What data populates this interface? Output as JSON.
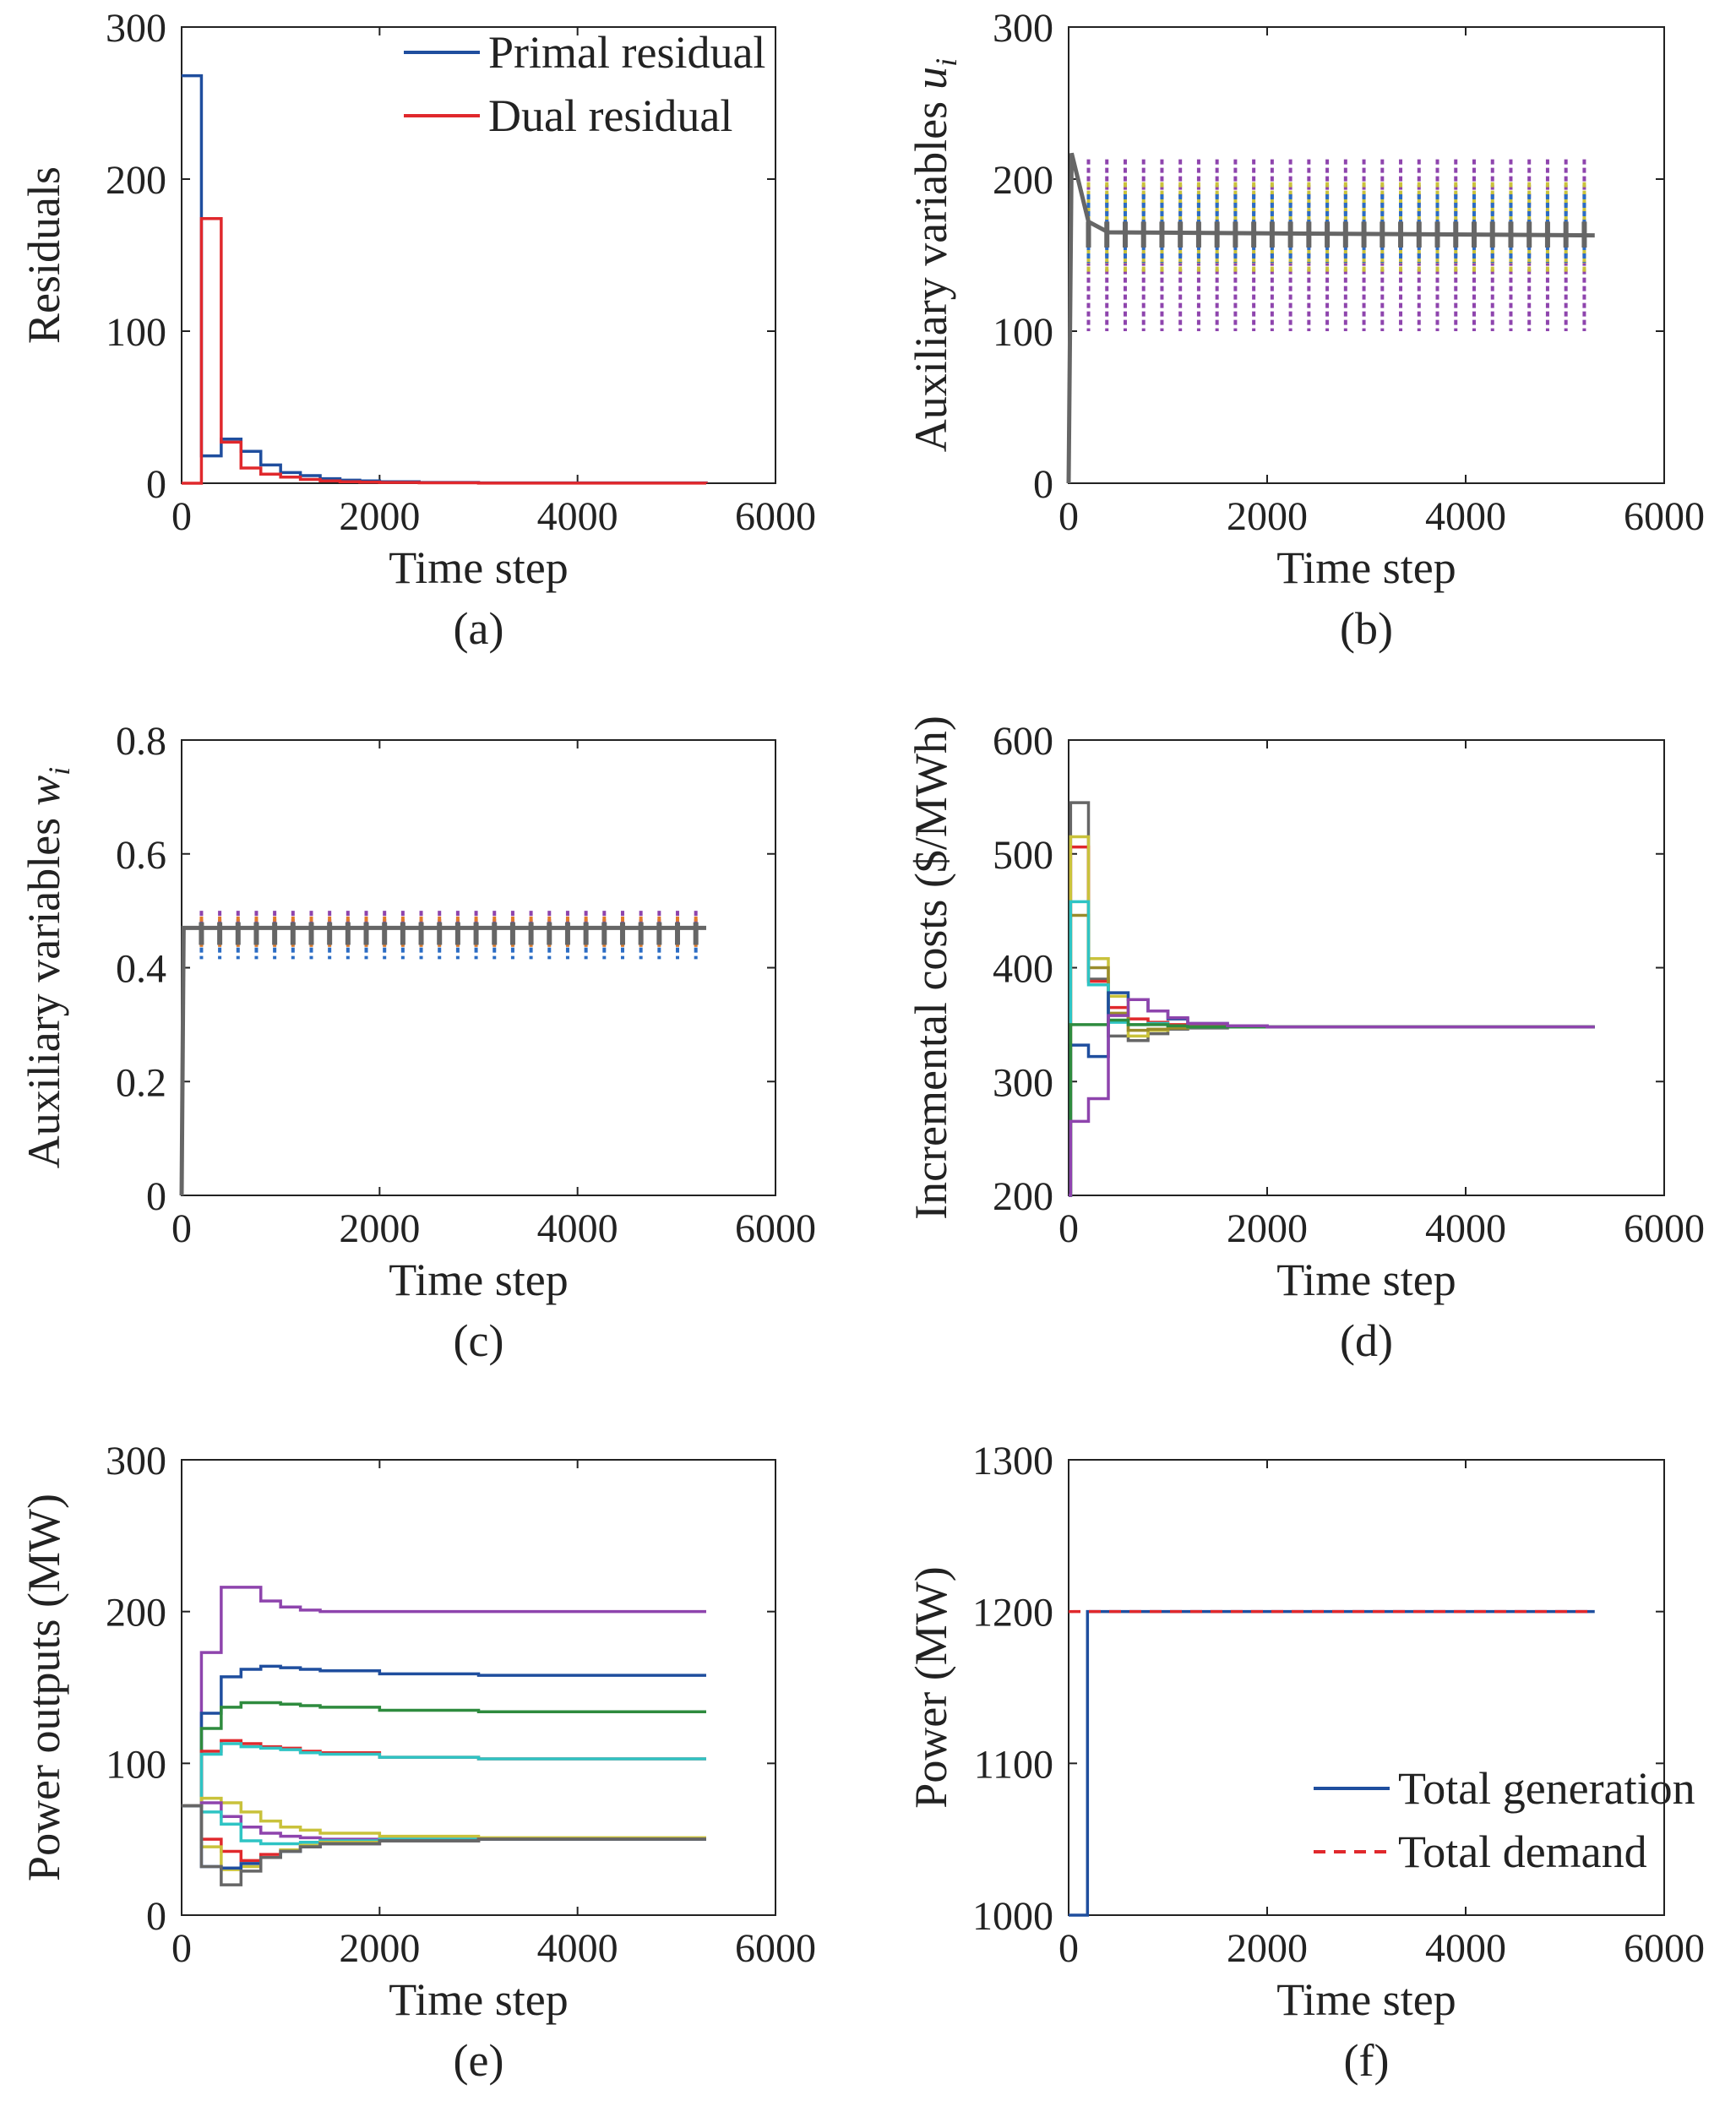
{
  "chart_data": [
    {
      "id": "a",
      "type": "line",
      "caption": "(a)",
      "xlabel": "Time step",
      "ylabel": "Residuals",
      "xlim": [
        0,
        6000
      ],
      "ylim": [
        0,
        300
      ],
      "xticks": [
        "0",
        "2000",
        "4000",
        "6000"
      ],
      "yticks": [
        "0",
        "100",
        "200",
        "300"
      ],
      "legend": "top-right",
      "series": [
        {
          "name": "Primal residual",
          "color": "#1f4e9e",
          "step": true,
          "x": [
            0,
            200,
            400,
            600,
            800,
            1000,
            1200,
            1400,
            1600,
            1800,
            2000,
            2400,
            3000,
            5300
          ],
          "y": [
            268,
            18,
            29,
            21,
            12,
            7,
            5,
            3,
            2,
            1.5,
            1,
            0.5,
            0.2,
            0.1
          ]
        },
        {
          "name": "Dual residual",
          "color": "#e0282c",
          "step": true,
          "x": [
            0,
            200,
            400,
            600,
            800,
            1000,
            1200,
            1400,
            1600,
            1800,
            2000,
            2400,
            3000,
            5300
          ],
          "y": [
            0,
            174,
            27,
            10,
            6,
            4,
            2.5,
            1.5,
            1,
            0.7,
            0.5,
            0.3,
            0.1,
            0.05
          ]
        }
      ]
    },
    {
      "id": "b",
      "type": "line",
      "caption": "(b)",
      "xlabel": "Time step",
      "ylabel": "Auxiliary variables",
      "ylabel_var": "u",
      "ylabel_sub": "i",
      "xlim": [
        0,
        6000
      ],
      "ylim": [
        0,
        300
      ],
      "xticks": [
        "0",
        "2000",
        "4000",
        "6000"
      ],
      "yticks": [
        "0",
        "100",
        "200",
        "300"
      ],
      "base": {
        "x": [
          0,
          30,
          200,
          400,
          5300
        ],
        "y": [
          0,
          217,
          172,
          165,
          163
        ],
        "color": "#666666"
      },
      "spikes": {
        "start": 200,
        "end": 5200,
        "period": 185,
        "center": 163,
        "series": [
          {
            "color": "#8e44ad",
            "lo": 100,
            "hi": 213
          },
          {
            "color": "#c9c23b",
            "lo": 138,
            "hi": 198
          },
          {
            "color": "#2b6cc4",
            "lo": 145,
            "hi": 190
          },
          {
            "color": "#666666",
            "lo": 155,
            "hi": 172
          }
        ]
      }
    },
    {
      "id": "c",
      "type": "line",
      "caption": "(c)",
      "xlabel": "Time step",
      "ylabel": "Auxiliary variables",
      "ylabel_var": "w",
      "ylabel_sub": "i",
      "xlim": [
        0,
        6000
      ],
      "ylim": [
        0,
        0.8
      ],
      "xticks": [
        "0",
        "2000",
        "4000",
        "6000"
      ],
      "yticks": [
        "0",
        "0.2",
        "0.4",
        "0.6",
        "0.8"
      ],
      "base": {
        "x": [
          0,
          20,
          5300
        ],
        "y": [
          0,
          0.47,
          0.47
        ],
        "color": "#666666"
      },
      "spikes": {
        "start": 200,
        "end": 5200,
        "period": 185,
        "center": 0.47,
        "series": [
          {
            "color": "#8e44ad",
            "lo": 0.45,
            "hi": 0.5
          },
          {
            "color": "#e07b2a",
            "lo": 0.43,
            "hi": 0.49
          },
          {
            "color": "#2b6cc4",
            "lo": 0.415,
            "hi": 0.48
          },
          {
            "color": "#666666",
            "lo": 0.44,
            "hi": 0.48
          }
        ]
      }
    },
    {
      "id": "d",
      "type": "line",
      "caption": "(d)",
      "xlabel": "Time step",
      "ylabel": "Incremental costs ($/MWh)",
      "xlim": [
        0,
        6000
      ],
      "ylim": [
        200,
        600
      ],
      "xticks": [
        "0",
        "2000",
        "4000",
        "6000"
      ],
      "yticks": [
        "200",
        "300",
        "400",
        "500",
        "600"
      ],
      "series": [
        {
          "color": "#666666",
          "step": true,
          "x": [
            0,
            20,
            200,
            400,
            600,
            800,
            1000,
            1200,
            1600,
            2000,
            5300
          ],
          "y": [
            200,
            545,
            390,
            340,
            336,
            342,
            346,
            347,
            348,
            348,
            348
          ]
        },
        {
          "color": "#e0282c",
          "step": true,
          "x": [
            0,
            20,
            200,
            400,
            600,
            800,
            1000,
            1200,
            1600,
            2000,
            5300
          ],
          "y": [
            200,
            506,
            388,
            365,
            355,
            352,
            350,
            349,
            348,
            348,
            348
          ]
        },
        {
          "color": "#c9c23b",
          "step": true,
          "x": [
            0,
            20,
            200,
            400,
            600,
            800,
            1000,
            1200,
            1600,
            2000,
            5300
          ],
          "y": [
            200,
            515,
            408,
            375,
            340,
            345,
            347,
            348,
            348,
            348,
            348
          ]
        },
        {
          "color": "#9a8c2a",
          "step": true,
          "x": [
            0,
            20,
            200,
            400,
            600,
            800,
            1000,
            1200,
            1600,
            2000,
            5300
          ],
          "y": [
            200,
            446,
            400,
            360,
            345,
            346,
            347,
            348,
            348,
            348,
            348
          ]
        },
        {
          "color": "#2ec4c4",
          "step": true,
          "x": [
            0,
            20,
            200,
            400,
            600,
            800,
            1000,
            1200,
            1600,
            2000,
            5300
          ],
          "y": [
            200,
            458,
            385,
            352,
            350,
            351,
            349,
            348,
            348,
            348,
            348
          ]
        },
        {
          "color": "#1f4e9e",
          "step": true,
          "x": [
            0,
            20,
            200,
            400,
            600,
            800,
            1000,
            1200,
            1600,
            2000,
            5300
          ],
          "y": [
            200,
            332,
            322,
            378,
            372,
            362,
            355,
            351,
            349,
            348,
            348
          ]
        },
        {
          "color": "#2e8b3e",
          "step": true,
          "x": [
            0,
            20,
            200,
            400,
            600,
            800,
            1000,
            1200,
            1600,
            2000,
            5300
          ],
          "y": [
            200,
            350,
            350,
            354,
            350,
            350,
            349,
            348,
            348,
            348,
            348
          ]
        },
        {
          "color": "#8e44ad",
          "step": true,
          "x": [
            0,
            20,
            200,
            400,
            600,
            800,
            1000,
            1200,
            1600,
            2000,
            5300
          ],
          "y": [
            200,
            265,
            285,
            358,
            372,
            362,
            356,
            351,
            349,
            348,
            348
          ]
        }
      ]
    },
    {
      "id": "e",
      "type": "line",
      "caption": "(e)",
      "xlabel": "Time step",
      "ylabel": "Power outputs (MW)",
      "xlim": [
        0,
        6000
      ],
      "ylim": [
        0,
        300
      ],
      "xticks": [
        "0",
        "2000",
        "4000",
        "6000"
      ],
      "yticks": [
        "0",
        "100",
        "200",
        "300"
      ],
      "series": [
        {
          "color": "#8e44ad",
          "step": true,
          "x": [
            0,
            200,
            400,
            600,
            800,
            1000,
            1200,
            1400,
            2000,
            5300
          ],
          "y": [
            72,
            173,
            216,
            216,
            207,
            203,
            201,
            200,
            200,
            200
          ]
        },
        {
          "color": "#1f4e9e",
          "step": true,
          "x": [
            0,
            200,
            400,
            600,
            800,
            1000,
            1200,
            1400,
            2000,
            3000,
            5300
          ],
          "y": [
            72,
            133,
            157,
            162,
            164,
            163,
            162,
            161,
            159,
            158,
            158
          ]
        },
        {
          "color": "#2e8b3e",
          "step": true,
          "x": [
            0,
            200,
            400,
            600,
            800,
            1000,
            1200,
            1400,
            2000,
            3000,
            5300
          ],
          "y": [
            72,
            123,
            137,
            140,
            140,
            139,
            138,
            137,
            135,
            134,
            134
          ]
        },
        {
          "color": "#e0282c",
          "step": true,
          "x": [
            0,
            200,
            400,
            600,
            800,
            1000,
            1200,
            1400,
            2000,
            3000,
            5300
          ],
          "y": [
            72,
            108,
            115,
            113,
            111,
            110,
            108,
            107,
            104,
            103,
            103
          ]
        },
        {
          "color": "#2ec4c4",
          "step": true,
          "x": [
            0,
            200,
            400,
            600,
            800,
            1000,
            1200,
            1400,
            2000,
            3000,
            5300
          ],
          "y": [
            72,
            106,
            113,
            111,
            110,
            109,
            107,
            106,
            104,
            103,
            103
          ]
        },
        {
          "color": "#c9c23b",
          "step": true,
          "x": [
            0,
            200,
            400,
            600,
            800,
            1000,
            1200,
            1400,
            2000,
            3000,
            5300
          ],
          "y": [
            72,
            77,
            74,
            68,
            62,
            58,
            56,
            54,
            52,
            51,
            51
          ]
        },
        {
          "color": "#8e44ad",
          "step": true,
          "x": [
            0,
            200,
            400,
            600,
            800,
            1000,
            1200,
            1400,
            2000,
            3000,
            5300
          ],
          "y": [
            72,
            74,
            65,
            58,
            54,
            52,
            51,
            50,
            50,
            50,
            50
          ]
        },
        {
          "color": "#2ec4c4",
          "step": true,
          "x": [
            0,
            200,
            400,
            600,
            800,
            1000,
            1200,
            1400,
            2000,
            3000,
            5300
          ],
          "y": [
            72,
            68,
            60,
            49,
            47,
            47,
            48,
            49,
            50,
            50,
            50
          ]
        },
        {
          "color": "#e0282c",
          "step": true,
          "x": [
            0,
            200,
            400,
            600,
            800,
            1000,
            1200,
            1400,
            2000,
            3000,
            5300
          ],
          "y": [
            72,
            50,
            42,
            36,
            40,
            43,
            45,
            47,
            49,
            50,
            50
          ]
        },
        {
          "color": "#c9c23b",
          "step": true,
          "x": [
            0,
            200,
            400,
            600,
            800,
            1000,
            1200,
            1400,
            2000,
            3000,
            5300
          ],
          "y": [
            72,
            45,
            30,
            32,
            38,
            43,
            46,
            48,
            49,
            50,
            50
          ]
        },
        {
          "color": "#1f4e9e",
          "step": true,
          "x": [
            0,
            200,
            400,
            600,
            800,
            1000,
            1200,
            1400,
            2000,
            3000,
            5300
          ],
          "y": [
            72,
            32,
            31,
            34,
            38,
            42,
            45,
            47,
            49,
            50,
            50
          ]
        },
        {
          "color": "#666666",
          "step": true,
          "x": [
            0,
            200,
            400,
            600,
            800,
            1000,
            1200,
            1400,
            2000,
            3000,
            5300
          ],
          "y": [
            72,
            32,
            20,
            29,
            38,
            42,
            45,
            47,
            49,
            50,
            50
          ]
        }
      ]
    },
    {
      "id": "f",
      "type": "line",
      "caption": "(f)",
      "xlabel": "Time step",
      "ylabel": "Power (MW)",
      "xlim": [
        0,
        6000
      ],
      "ylim": [
        1000,
        1300
      ],
      "xticks": [
        "0",
        "2000",
        "4000",
        "6000"
      ],
      "yticks": [
        "1000",
        "1100",
        "1200",
        "1300"
      ],
      "legend": "bottom-right",
      "series": [
        {
          "name": "Total generation",
          "color": "#1f4e9e",
          "step": true,
          "x": [
            0,
            190,
            5300
          ],
          "y": [
            1000,
            1200,
            1200
          ]
        },
        {
          "name": "Total demand",
          "color": "#e0282c",
          "dashed": true,
          "x": [
            0,
            5300
          ],
          "y": [
            1200,
            1200
          ]
        }
      ]
    }
  ]
}
